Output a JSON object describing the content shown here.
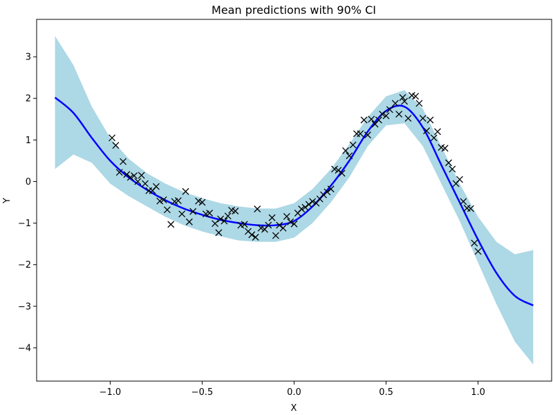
{
  "chart_data": {
    "type": "line",
    "title": "Mean predictions with 90% CI",
    "xlabel": "X",
    "ylabel": "Y",
    "xlim": [
      -1.4,
      1.4
    ],
    "ylim": [
      -4.8,
      3.9
    ],
    "xticks": [
      -1.0,
      -0.5,
      0.0,
      0.5,
      1.0
    ],
    "xtick_labels": [
      "−1.0",
      "−0.5",
      "0.0",
      "0.5",
      "1.0"
    ],
    "yticks": [
      -4,
      -3,
      -2,
      -1,
      0,
      1,
      2,
      3
    ],
    "ytick_labels": [
      "−4",
      "−3",
      "−2",
      "−1",
      "0",
      "1",
      "2",
      "3"
    ],
    "grid": false,
    "colors": {
      "mean_line": "#0000ff",
      "ci_band": "#add8e6",
      "observations": "#000000"
    },
    "series": [
      {
        "type": "line",
        "x": [
          -1.3,
          -1.2,
          -1.1,
          -1.0,
          -0.9,
          -0.8,
          -0.7,
          -0.6,
          -0.5,
          -0.4,
          -0.3,
          -0.2,
          -0.1,
          0.0,
          0.1,
          0.2,
          0.3,
          0.4,
          0.5,
          0.6,
          0.7,
          0.8,
          0.9,
          1.0,
          1.1,
          1.2,
          1.3
        ],
        "y": [
          2.02,
          1.65,
          1.05,
          0.5,
          0.1,
          -0.2,
          -0.45,
          -0.65,
          -0.8,
          -0.92,
          -1.0,
          -1.05,
          -1.05,
          -0.95,
          -0.6,
          -0.1,
          0.5,
          1.2,
          1.7,
          1.8,
          1.3,
          0.4,
          -0.5,
          -1.4,
          -2.2,
          -2.75,
          -2.98
        ]
      },
      {
        "type": "band",
        "x": [
          -1.3,
          -1.2,
          -1.1,
          -1.0,
          -0.9,
          -0.8,
          -0.7,
          -0.6,
          -0.5,
          -0.4,
          -0.3,
          -0.2,
          -0.1,
          0.0,
          0.1,
          0.2,
          0.3,
          0.4,
          0.5,
          0.6,
          0.7,
          0.8,
          0.9,
          1.0,
          1.1,
          1.2,
          1.3
        ],
        "upper": [
          3.5,
          2.8,
          1.8,
          1.05,
          0.55,
          0.2,
          -0.05,
          -0.25,
          -0.4,
          -0.52,
          -0.6,
          -0.65,
          -0.65,
          -0.52,
          -0.18,
          0.3,
          0.9,
          1.55,
          2.05,
          2.2,
          1.75,
          0.85,
          -0.05,
          -0.85,
          -1.45,
          -1.75,
          -1.65
        ],
        "lower": [
          0.3,
          0.65,
          0.45,
          -0.05,
          -0.35,
          -0.6,
          -0.85,
          -1.05,
          -1.2,
          -1.32,
          -1.42,
          -1.45,
          -1.45,
          -1.35,
          -1.0,
          -0.5,
          0.1,
          0.85,
          1.35,
          1.4,
          0.85,
          -0.05,
          -0.95,
          -1.95,
          -2.95,
          -3.85,
          -4.4
        ]
      },
      {
        "type": "scatter",
        "marker": "x",
        "points": [
          [
            -0.99,
            1.05
          ],
          [
            -0.97,
            0.87
          ],
          [
            -0.95,
            0.22
          ],
          [
            -0.93,
            0.48
          ],
          [
            -0.91,
            0.17
          ],
          [
            -0.89,
            0.1
          ],
          [
            -0.87,
            0.14
          ],
          [
            -0.85,
            0.0
          ],
          [
            -0.83,
            0.15
          ],
          [
            -0.81,
            -0.05
          ],
          [
            -0.79,
            -0.22
          ],
          [
            -0.77,
            -0.22
          ],
          [
            -0.75,
            -0.12
          ],
          [
            -0.73,
            -0.47
          ],
          [
            -0.71,
            -0.44
          ],
          [
            -0.69,
            -0.68
          ],
          [
            -0.67,
            -1.03
          ],
          [
            -0.65,
            -0.48
          ],
          [
            -0.63,
            -0.46
          ],
          [
            -0.61,
            -0.78
          ],
          [
            -0.59,
            -0.24
          ],
          [
            -0.57,
            -0.97
          ],
          [
            -0.55,
            -0.72
          ],
          [
            -0.52,
            -0.47
          ],
          [
            -0.5,
            -0.5
          ],
          [
            -0.48,
            -0.78
          ],
          [
            -0.46,
            -0.76
          ],
          [
            -0.43,
            -1.01
          ],
          [
            -0.41,
            -1.23
          ],
          [
            -0.4,
            -0.9
          ],
          [
            -0.38,
            -0.95
          ],
          [
            -0.36,
            -0.83
          ],
          [
            -0.34,
            -0.69
          ],
          [
            -0.32,
            -0.71
          ],
          [
            -0.29,
            -1.05
          ],
          [
            -0.27,
            -1.03
          ],
          [
            -0.25,
            -1.2
          ],
          [
            -0.23,
            -1.28
          ],
          [
            -0.21,
            -1.34
          ],
          [
            -0.2,
            -0.66
          ],
          [
            -0.18,
            -1.12
          ],
          [
            -0.16,
            -1.15
          ],
          [
            -0.14,
            -1.05
          ],
          [
            -0.12,
            -0.87
          ],
          [
            -0.1,
            -1.3
          ],
          [
            -0.08,
            -1.05
          ],
          [
            -0.06,
            -1.12
          ],
          [
            -0.04,
            -0.84
          ],
          [
            -0.02,
            -0.97
          ],
          [
            0.0,
            -1.02
          ],
          [
            0.02,
            -0.76
          ],
          [
            0.04,
            -0.66
          ],
          [
            0.06,
            -0.62
          ],
          [
            0.08,
            -0.55
          ],
          [
            0.1,
            -0.48
          ],
          [
            0.12,
            -0.52
          ],
          [
            0.14,
            -0.42
          ],
          [
            0.16,
            -0.32
          ],
          [
            0.18,
            -0.25
          ],
          [
            0.2,
            -0.18
          ],
          [
            0.22,
            0.3
          ],
          [
            0.24,
            0.27
          ],
          [
            0.26,
            0.2
          ],
          [
            0.28,
            0.74
          ],
          [
            0.3,
            0.62
          ],
          [
            0.32,
            0.88
          ],
          [
            0.34,
            1.15
          ],
          [
            0.36,
            1.15
          ],
          [
            0.38,
            1.48
          ],
          [
            0.4,
            1.12
          ],
          [
            0.42,
            1.5
          ],
          [
            0.44,
            1.38
          ],
          [
            0.46,
            1.48
          ],
          [
            0.48,
            1.62
          ],
          [
            0.5,
            1.58
          ],
          [
            0.52,
            1.73
          ],
          [
            0.55,
            1.88
          ],
          [
            0.57,
            1.62
          ],
          [
            0.59,
            2.02
          ],
          [
            0.6,
            1.93
          ],
          [
            0.62,
            1.52
          ],
          [
            0.64,
            2.07
          ],
          [
            0.66,
            2.05
          ],
          [
            0.68,
            1.88
          ],
          [
            0.7,
            1.52
          ],
          [
            0.72,
            1.22
          ],
          [
            0.74,
            1.48
          ],
          [
            0.76,
            1.05
          ],
          [
            0.78,
            1.2
          ],
          [
            0.8,
            0.82
          ],
          [
            0.82,
            0.8
          ],
          [
            0.84,
            0.45
          ],
          [
            0.86,
            0.3
          ],
          [
            0.88,
            -0.05
          ],
          [
            0.9,
            0.05
          ],
          [
            0.92,
            -0.48
          ],
          [
            0.94,
            -0.64
          ],
          [
            0.96,
            -0.65
          ],
          [
            0.98,
            -1.48
          ],
          [
            1.0,
            -1.68
          ]
        ]
      }
    ]
  }
}
